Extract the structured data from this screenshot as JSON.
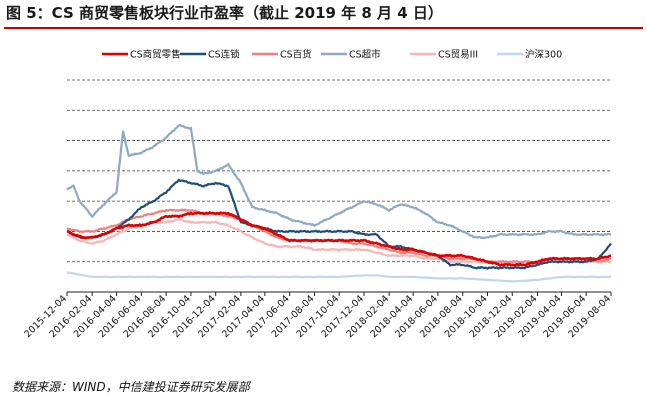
{
  "figure": {
    "title": "图 5：CS 商贸零售板块行业市盈率（截止 2019 年 8 月 4 日）",
    "source": "数据来源：WIND，中信建投证券研究发展部"
  },
  "chart_data": {
    "type": "line",
    "title": "",
    "xlabel": "",
    "ylabel": "",
    "ylim": [
      0,
      70
    ],
    "grid": "horizontal dashed",
    "legend_position": "top",
    "x_ticks": [
      "2015-12-04",
      "2016-02-04",
      "2016-04-04",
      "2016-06-04",
      "2016-08-04",
      "2016-10-04",
      "2016-12-04",
      "2017-02-04",
      "2017-04-04",
      "2017-06-04",
      "2017-08-04",
      "2017-10-04",
      "2017-12-04",
      "2018-02-04",
      "2018-04-04",
      "2018-06-04",
      "2018-08-04",
      "2018-10-04",
      "2018-12-04",
      "2019-02-04",
      "2019-04-04",
      "2019-06-04",
      "2019-08-04"
    ],
    "series": [
      {
        "name": "CS商贸零售",
        "color": "#e00000",
        "width": 2.6,
        "points": [
          [
            "2015-12-04",
            20
          ],
          [
            "2016-01-10",
            18
          ],
          [
            "2016-02-04",
            18
          ],
          [
            "2016-03-04",
            19
          ],
          [
            "2016-04-04",
            21
          ],
          [
            "2016-05-04",
            22
          ],
          [
            "2016-06-04",
            22
          ],
          [
            "2016-07-04",
            23
          ],
          [
            "2016-08-04",
            25
          ],
          [
            "2016-09-04",
            25
          ],
          [
            "2016-10-04",
            26
          ],
          [
            "2016-11-04",
            26
          ],
          [
            "2016-12-04",
            26
          ],
          [
            "2017-01-04",
            26
          ],
          [
            "2017-02-04",
            24
          ],
          [
            "2017-03-04",
            22
          ],
          [
            "2017-04-04",
            21
          ],
          [
            "2017-05-04",
            19
          ],
          [
            "2017-06-04",
            17
          ],
          [
            "2017-07-04",
            17
          ],
          [
            "2017-08-04",
            17
          ],
          [
            "2017-09-04",
            17
          ],
          [
            "2017-10-04",
            17
          ],
          [
            "2017-11-04",
            17
          ],
          [
            "2017-12-04",
            17
          ],
          [
            "2018-01-04",
            16
          ],
          [
            "2018-02-04",
            15
          ],
          [
            "2018-03-04",
            14
          ],
          [
            "2018-04-04",
            14
          ],
          [
            "2018-05-04",
            13
          ],
          [
            "2018-06-04",
            12
          ],
          [
            "2018-07-04",
            12
          ],
          [
            "2018-08-04",
            12
          ],
          [
            "2018-09-04",
            11
          ],
          [
            "2018-10-04",
            10
          ],
          [
            "2018-11-04",
            9
          ],
          [
            "2018-12-04",
            9
          ],
          [
            "2019-01-04",
            9
          ],
          [
            "2019-02-04",
            10
          ],
          [
            "2019-03-04",
            11
          ],
          [
            "2019-04-04",
            11
          ],
          [
            "2019-05-04",
            11
          ],
          [
            "2019-06-04",
            11
          ],
          [
            "2019-07-04",
            11
          ],
          [
            "2019-08-04",
            12
          ]
        ]
      },
      {
        "name": "CS连锁",
        "color": "#1f4e79",
        "width": 2.2,
        "points": [
          [
            "2015-12-04",
            20
          ],
          [
            "2016-01-04",
            18
          ],
          [
            "2016-02-04",
            18
          ],
          [
            "2016-03-04",
            19
          ],
          [
            "2016-04-04",
            21
          ],
          [
            "2016-05-04",
            24
          ],
          [
            "2016-06-04",
            28
          ],
          [
            "2016-07-04",
            30
          ],
          [
            "2016-08-04",
            33
          ],
          [
            "2016-09-04",
            37
          ],
          [
            "2016-10-04",
            36
          ],
          [
            "2016-11-04",
            35
          ],
          [
            "2016-12-04",
            36
          ],
          [
            "2017-01-04",
            35
          ],
          [
            "2017-02-04",
            23
          ],
          [
            "2017-03-04",
            22
          ],
          [
            "2017-04-04",
            21
          ],
          [
            "2017-05-04",
            20
          ],
          [
            "2017-06-04",
            20
          ],
          [
            "2017-07-04",
            20
          ],
          [
            "2017-08-04",
            20
          ],
          [
            "2017-09-04",
            20
          ],
          [
            "2017-10-04",
            20
          ],
          [
            "2017-11-04",
            20
          ],
          [
            "2017-12-04",
            19
          ],
          [
            "2018-01-04",
            19
          ],
          [
            "2018-02-04",
            15
          ],
          [
            "2018-03-04",
            15
          ],
          [
            "2018-04-04",
            14
          ],
          [
            "2018-05-04",
            13
          ],
          [
            "2018-06-04",
            12
          ],
          [
            "2018-07-04",
            9
          ],
          [
            "2018-08-04",
            9
          ],
          [
            "2018-09-04",
            8
          ],
          [
            "2018-10-04",
            8
          ],
          [
            "2018-11-04",
            8
          ],
          [
            "2018-12-04",
            8
          ],
          [
            "2019-01-04",
            8
          ],
          [
            "2019-02-04",
            9
          ],
          [
            "2019-03-04",
            10
          ],
          [
            "2019-04-04",
            10
          ],
          [
            "2019-05-04",
            10
          ],
          [
            "2019-06-04",
            10
          ],
          [
            "2019-07-04",
            11
          ],
          [
            "2019-08-04",
            16
          ]
        ]
      },
      {
        "name": "CS百货",
        "color": "#f08080",
        "width": 2.2,
        "points": [
          [
            "2015-12-04",
            21
          ],
          [
            "2016-01-04",
            20
          ],
          [
            "2016-02-04",
            20
          ],
          [
            "2016-03-04",
            21
          ],
          [
            "2016-04-04",
            22
          ],
          [
            "2016-05-04",
            24
          ],
          [
            "2016-06-04",
            25
          ],
          [
            "2016-07-04",
            26
          ],
          [
            "2016-08-04",
            27
          ],
          [
            "2016-09-04",
            27
          ],
          [
            "2016-10-04",
            27
          ],
          [
            "2016-11-04",
            26
          ],
          [
            "2016-12-04",
            26
          ],
          [
            "2017-01-04",
            25
          ],
          [
            "2017-02-04",
            24
          ],
          [
            "2017-03-04",
            22
          ],
          [
            "2017-04-04",
            20
          ],
          [
            "2017-05-04",
            18
          ],
          [
            "2017-06-04",
            17
          ],
          [
            "2017-07-04",
            17
          ],
          [
            "2017-08-04",
            17
          ],
          [
            "2017-09-04",
            17
          ],
          [
            "2017-10-04",
            17
          ],
          [
            "2017-11-04",
            16
          ],
          [
            "2017-12-04",
            16
          ],
          [
            "2018-01-04",
            15
          ],
          [
            "2018-02-04",
            14
          ],
          [
            "2018-03-04",
            13
          ],
          [
            "2018-04-04",
            13
          ],
          [
            "2018-05-04",
            12
          ],
          [
            "2018-06-04",
            12
          ],
          [
            "2018-07-04",
            11
          ],
          [
            "2018-08-04",
            11
          ],
          [
            "2018-09-04",
            11
          ],
          [
            "2018-10-04",
            10
          ],
          [
            "2018-11-04",
            10
          ],
          [
            "2018-12-04",
            10
          ],
          [
            "2019-01-04",
            10
          ],
          [
            "2019-02-04",
            10
          ],
          [
            "2019-03-04",
            11
          ],
          [
            "2019-04-04",
            11
          ],
          [
            "2019-05-04",
            11
          ],
          [
            "2019-06-04",
            11
          ],
          [
            "2019-07-04",
            10
          ],
          [
            "2019-08-04",
            11
          ]
        ]
      },
      {
        "name": "CS超市",
        "color": "#8ea9c1",
        "width": 2.2,
        "points": [
          [
            "2015-12-04",
            34
          ],
          [
            "2015-12-20",
            35
          ],
          [
            "2016-01-04",
            30
          ],
          [
            "2016-02-04",
            25
          ],
          [
            "2016-03-04",
            29
          ],
          [
            "2016-04-04",
            33
          ],
          [
            "2016-04-20",
            53
          ],
          [
            "2016-05-04",
            45
          ],
          [
            "2016-06-04",
            46
          ],
          [
            "2016-07-04",
            48
          ],
          [
            "2016-08-04",
            51
          ],
          [
            "2016-09-04",
            55
          ],
          [
            "2016-10-04",
            54
          ],
          [
            "2016-10-20",
            40
          ],
          [
            "2016-11-04",
            39
          ],
          [
            "2016-12-04",
            40
          ],
          [
            "2017-01-04",
            42
          ],
          [
            "2017-02-04",
            36
          ],
          [
            "2017-03-04",
            28
          ],
          [
            "2017-04-04",
            27
          ],
          [
            "2017-05-04",
            26
          ],
          [
            "2017-06-04",
            24
          ],
          [
            "2017-07-04",
            23
          ],
          [
            "2017-08-04",
            22
          ],
          [
            "2017-09-04",
            24
          ],
          [
            "2017-10-04",
            26
          ],
          [
            "2017-11-04",
            28
          ],
          [
            "2017-12-04",
            30
          ],
          [
            "2018-01-04",
            29
          ],
          [
            "2018-02-04",
            27
          ],
          [
            "2018-03-04",
            29
          ],
          [
            "2018-04-04",
            28
          ],
          [
            "2018-05-04",
            26
          ],
          [
            "2018-06-04",
            23
          ],
          [
            "2018-07-04",
            22
          ],
          [
            "2018-08-04",
            20
          ],
          [
            "2018-09-04",
            18
          ],
          [
            "2018-10-04",
            18
          ],
          [
            "2018-11-04",
            19
          ],
          [
            "2018-12-04",
            19
          ],
          [
            "2019-01-04",
            19
          ],
          [
            "2019-02-04",
            19
          ],
          [
            "2019-03-04",
            20
          ],
          [
            "2019-04-04",
            20
          ],
          [
            "2019-05-04",
            19
          ],
          [
            "2019-06-04",
            19
          ],
          [
            "2019-07-04",
            19
          ],
          [
            "2019-08-04",
            19
          ]
        ]
      },
      {
        "name": "CS贸易III",
        "color": "#f4b6b6",
        "width": 2.2,
        "points": [
          [
            "2015-12-04",
            19
          ],
          [
            "2016-01-04",
            17
          ],
          [
            "2016-02-04",
            16
          ],
          [
            "2016-03-04",
            17
          ],
          [
            "2016-04-04",
            19
          ],
          [
            "2016-05-04",
            21
          ],
          [
            "2016-06-04",
            22
          ],
          [
            "2016-07-04",
            23
          ],
          [
            "2016-08-04",
            23
          ],
          [
            "2016-09-04",
            24
          ],
          [
            "2016-10-04",
            23
          ],
          [
            "2016-11-04",
            23
          ],
          [
            "2016-12-04",
            23
          ],
          [
            "2017-01-04",
            22
          ],
          [
            "2017-02-04",
            20
          ],
          [
            "2017-03-04",
            18
          ],
          [
            "2017-04-04",
            16
          ],
          [
            "2017-05-04",
            15
          ],
          [
            "2017-06-04",
            15
          ],
          [
            "2017-07-04",
            15
          ],
          [
            "2017-08-04",
            14
          ],
          [
            "2017-09-04",
            14
          ],
          [
            "2017-10-04",
            14
          ],
          [
            "2017-11-04",
            14
          ],
          [
            "2017-12-04",
            14
          ],
          [
            "2018-01-04",
            13
          ],
          [
            "2018-02-04",
            12
          ],
          [
            "2018-03-04",
            12
          ],
          [
            "2018-04-04",
            12
          ],
          [
            "2018-05-04",
            11
          ],
          [
            "2018-06-04",
            11
          ],
          [
            "2018-07-04",
            10
          ],
          [
            "2018-08-04",
            10
          ],
          [
            "2018-09-04",
            10
          ],
          [
            "2018-10-04",
            10
          ],
          [
            "2018-11-04",
            10
          ],
          [
            "2018-12-04",
            9
          ],
          [
            "2019-01-04",
            9
          ],
          [
            "2019-02-04",
            9
          ],
          [
            "2019-03-04",
            10
          ],
          [
            "2019-04-04",
            10
          ],
          [
            "2019-05-04",
            10
          ],
          [
            "2019-06-04",
            10
          ],
          [
            "2019-07-04",
            10
          ],
          [
            "2019-08-04",
            10
          ]
        ]
      },
      {
        "name": "沪深300",
        "color": "#bdd7ee",
        "width": 2.2,
        "points": [
          [
            "2015-12-04",
            6.5
          ],
          [
            "2016-02-04",
            5
          ],
          [
            "2016-04-04",
            5
          ],
          [
            "2016-06-04",
            5
          ],
          [
            "2016-08-04",
            5
          ],
          [
            "2016-10-04",
            5
          ],
          [
            "2016-12-04",
            5
          ],
          [
            "2017-02-04",
            5
          ],
          [
            "2017-04-04",
            5
          ],
          [
            "2017-06-04",
            5
          ],
          [
            "2017-08-04",
            5
          ],
          [
            "2017-10-04",
            5
          ],
          [
            "2017-12-04",
            5.5
          ],
          [
            "2018-01-04",
            5.5
          ],
          [
            "2018-02-04",
            5
          ],
          [
            "2018-04-04",
            5
          ],
          [
            "2018-06-04",
            4.5
          ],
          [
            "2018-08-04",
            4.5
          ],
          [
            "2018-10-04",
            4
          ],
          [
            "2018-12-04",
            3.5
          ],
          [
            "2019-02-04",
            4
          ],
          [
            "2019-04-04",
            5
          ],
          [
            "2019-06-04",
            5
          ],
          [
            "2019-08-04",
            5
          ]
        ]
      }
    ]
  }
}
